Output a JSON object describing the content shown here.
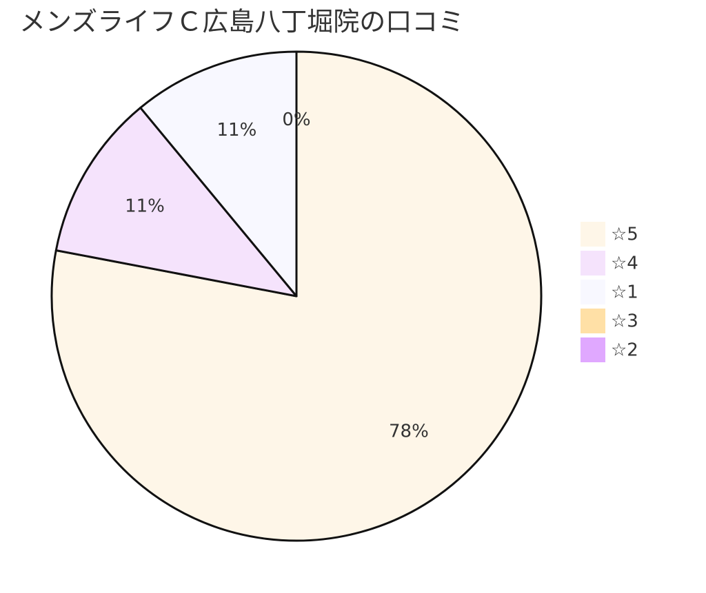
{
  "chart_data": {
    "type": "pie",
    "title": "メンズライフＣ広島八丁堀院の口コミ",
    "categories": [
      "☆5",
      "☆4",
      "☆1",
      "☆3",
      "☆2"
    ],
    "values": [
      78,
      11,
      11,
      0,
      0
    ],
    "value_labels": [
      "78%",
      "11%",
      "11%",
      "0%",
      null
    ],
    "colors": [
      "#fef6e8",
      "#f5e3fc",
      "#f8f8ff",
      "#ffe0a6",
      "#e0a8ff"
    ],
    "legend": "right"
  }
}
